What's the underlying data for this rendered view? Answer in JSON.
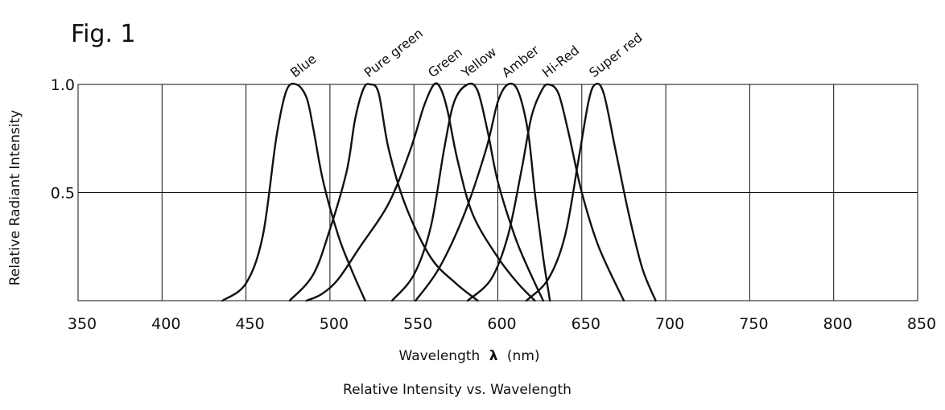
{
  "figure_label": "Fig. 1",
  "chart_data": {
    "type": "line",
    "title": "",
    "caption": "Relative Intensity vs. Wavelength",
    "xlabel_text": "Wavelength",
    "xlabel_symbol": "λ",
    "xlabel_unit": "(nm)",
    "ylabel": "Relative Radiant Intensity",
    "xlim": [
      350,
      850
    ],
    "ylim": [
      0,
      1.0
    ],
    "x_ticks": [
      350,
      400,
      450,
      500,
      550,
      600,
      650,
      700,
      750,
      800,
      850
    ],
    "y_ticks": [
      {
        "value": 1.0,
        "label": "1.0"
      },
      {
        "value": 0.5,
        "label": "0.5"
      }
    ],
    "grid": true,
    "legend": "none",
    "line_color": "#111111",
    "series": [
      {
        "name": "Blue",
        "points": [
          [
            436,
            0
          ],
          [
            450,
            0.08
          ],
          [
            460,
            0.3
          ],
          [
            468,
            0.75
          ],
          [
            474,
            0.97
          ],
          [
            480,
            1.0
          ],
          [
            486,
            0.94
          ],
          [
            490,
            0.8
          ],
          [
            496,
            0.55
          ],
          [
            505,
            0.3
          ],
          [
            513,
            0.14
          ],
          [
            521,
            0
          ]
        ]
      },
      {
        "name": "Pure green",
        "points": [
          [
            476,
            0
          ],
          [
            490,
            0.12
          ],
          [
            500,
            0.33
          ],
          [
            510,
            0.6
          ],
          [
            515,
            0.84
          ],
          [
            520,
            0.98
          ],
          [
            524,
            1.0
          ],
          [
            529,
            0.96
          ],
          [
            535,
            0.7
          ],
          [
            545,
            0.44
          ],
          [
            560,
            0.2
          ],
          [
            575,
            0.08
          ],
          [
            588,
            0
          ]
        ]
      },
      {
        "name": "Green",
        "points": [
          [
            486,
            0
          ],
          [
            495,
            0.03
          ],
          [
            505,
            0.1
          ],
          [
            518,
            0.25
          ],
          [
            535,
            0.45
          ],
          [
            548,
            0.7
          ],
          [
            556,
            0.9
          ],
          [
            562,
            1.0
          ],
          [
            566,
            0.98
          ],
          [
            570,
            0.88
          ],
          [
            576,
            0.65
          ],
          [
            585,
            0.4
          ],
          [
            600,
            0.2
          ],
          [
            612,
            0.08
          ],
          [
            622,
            0
          ]
        ]
      },
      {
        "name": "Yellow",
        "points": [
          [
            537,
            0
          ],
          [
            550,
            0.12
          ],
          [
            560,
            0.34
          ],
          [
            568,
            0.7
          ],
          [
            574,
            0.92
          ],
          [
            582,
            1.0
          ],
          [
            588,
            0.97
          ],
          [
            594,
            0.78
          ],
          [
            600,
            0.55
          ],
          [
            610,
            0.3
          ],
          [
            618,
            0.15
          ],
          [
            627,
            0
          ]
        ]
      },
      {
        "name": "Amber",
        "points": [
          [
            551,
            0
          ],
          [
            565,
            0.15
          ],
          [
            580,
            0.4
          ],
          [
            593,
            0.7
          ],
          [
            600,
            0.92
          ],
          [
            606,
            1.0
          ],
          [
            612,
            0.97
          ],
          [
            618,
            0.78
          ],
          [
            622,
            0.5
          ],
          [
            627,
            0.2
          ],
          [
            631,
            0
          ]
        ]
      },
      {
        "name": "Hi-Red",
        "points": [
          [
            582,
            0
          ],
          [
            596,
            0.1
          ],
          [
            606,
            0.3
          ],
          [
            614,
            0.6
          ],
          [
            620,
            0.85
          ],
          [
            626,
            0.97
          ],
          [
            630,
            1.0
          ],
          [
            636,
            0.96
          ],
          [
            642,
            0.78
          ],
          [
            650,
            0.5
          ],
          [
            660,
            0.25
          ],
          [
            675,
            0
          ]
        ]
      },
      {
        "name": "Super red",
        "points": [
          [
            617,
            0
          ],
          [
            630,
            0.1
          ],
          [
            640,
            0.3
          ],
          [
            648,
            0.65
          ],
          [
            654,
            0.92
          ],
          [
            658,
            1.0
          ],
          [
            663,
            0.96
          ],
          [
            670,
            0.7
          ],
          [
            678,
            0.4
          ],
          [
            686,
            0.15
          ],
          [
            694,
            0
          ]
        ]
      }
    ],
    "series_labels": [
      "Blue",
      "Pure green",
      "Green",
      "Yellow",
      "Amber",
      "Hi-Red",
      "Super red"
    ]
  }
}
